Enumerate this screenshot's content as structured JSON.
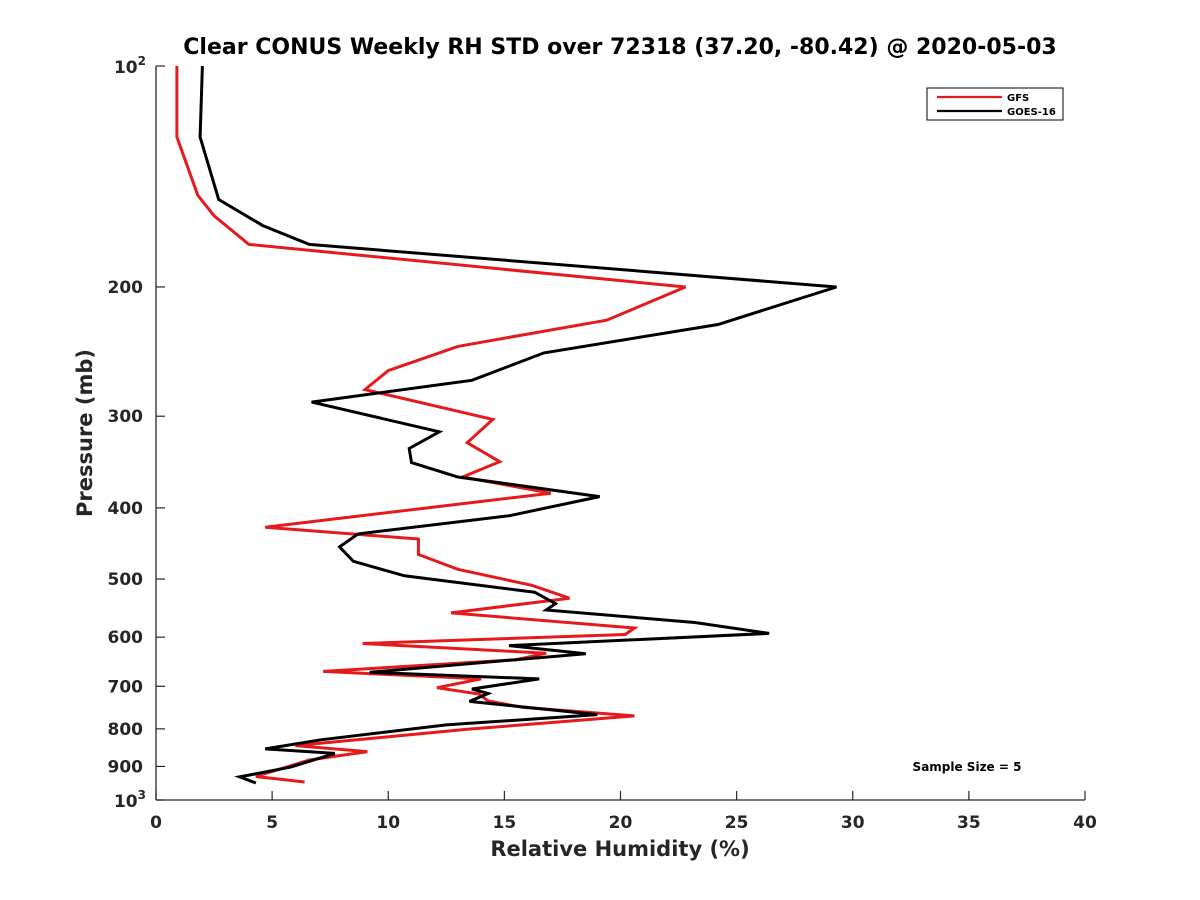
{
  "chart_data": {
    "type": "line",
    "title": "Clear CONUS Weekly RH STD over 72318 (37.20, -80.42) @ 2020-05-03",
    "xlabel": "Relative Humidity (%)",
    "ylabel": "Pressure (mb)",
    "xlim": [
      0,
      40
    ],
    "ylim": [
      100,
      1000
    ],
    "yscale": "log",
    "y_reversed": true,
    "grid": false,
    "legend_position": "top-right",
    "x_ticks": [
      "0",
      "5",
      "10",
      "15",
      "20",
      "25",
      "30",
      "35",
      "40"
    ],
    "y_ticks": [
      {
        "value": 100,
        "base": "10",
        "exp": "2"
      },
      {
        "value": 200,
        "label": "200"
      },
      {
        "value": 300,
        "label": "300"
      },
      {
        "value": 400,
        "label": "400"
      },
      {
        "value": 500,
        "label": "500"
      },
      {
        "value": 600,
        "label": "600"
      },
      {
        "value": 700,
        "label": "700"
      },
      {
        "value": 800,
        "label": "800"
      },
      {
        "value": 900,
        "label": "900"
      },
      {
        "value": 1000,
        "base": "10",
        "exp": "3"
      }
    ],
    "annotation": "Sample Size = 5",
    "series": [
      {
        "name": "GFS",
        "color": "#e41a1c",
        "points": [
          [
            0.9,
            100
          ],
          [
            0.9,
            125
          ],
          [
            1.8,
            150
          ],
          [
            2.5,
            160
          ],
          [
            4.0,
            175
          ],
          [
            22.8,
            200
          ],
          [
            19.4,
            222
          ],
          [
            13.0,
            241
          ],
          [
            10.0,
            260
          ],
          [
            9.0,
            276
          ],
          [
            14.5,
            303
          ],
          [
            13.4,
            326
          ],
          [
            14.8,
            346
          ],
          [
            13.2,
            363
          ],
          [
            17.0,
            382
          ],
          [
            4.7,
            425
          ],
          [
            11.3,
            441
          ],
          [
            11.3,
            463
          ],
          [
            13.0,
            485
          ],
          [
            16.2,
            510
          ],
          [
            17.8,
            531
          ],
          [
            12.7,
            556
          ],
          [
            20.6,
            583
          ],
          [
            20.2,
            595
          ],
          [
            8.9,
            612
          ],
          [
            16.8,
            631
          ],
          [
            15.5,
            644
          ],
          [
            7.2,
            668
          ],
          [
            14.0,
            684
          ],
          [
            12.1,
            703
          ],
          [
            13.9,
            717
          ],
          [
            14.3,
            733
          ],
          [
            15.8,
            748
          ],
          [
            20.6,
            768
          ],
          [
            13.4,
            801
          ],
          [
            6.0,
            843
          ],
          [
            9.1,
            859
          ],
          [
            6.6,
            882
          ],
          [
            4.3,
            929
          ],
          [
            6.4,
            945
          ]
        ]
      },
      {
        "name": "GOES-16",
        "color": "#000000",
        "points": [
          [
            2.0,
            100
          ],
          [
            1.9,
            125
          ],
          [
            2.7,
            152
          ],
          [
            4.6,
            165
          ],
          [
            6.6,
            175
          ],
          [
            29.3,
            200
          ],
          [
            24.2,
            225
          ],
          [
            16.7,
            246
          ],
          [
            13.6,
            268
          ],
          [
            6.7,
            287
          ],
          [
            12.2,
            315
          ],
          [
            10.9,
            332
          ],
          [
            11.0,
            347
          ],
          [
            13.0,
            363
          ],
          [
            19.1,
            386
          ],
          [
            15.2,
            410
          ],
          [
            8.7,
            434
          ],
          [
            7.9,
            452
          ],
          [
            8.5,
            473
          ],
          [
            10.7,
            495
          ],
          [
            16.3,
            521
          ],
          [
            17.2,
            540
          ],
          [
            16.8,
            551
          ],
          [
            23.2,
            573
          ],
          [
            26.4,
            593
          ],
          [
            15.2,
            616
          ],
          [
            18.5,
            632
          ],
          [
            9.2,
            670
          ],
          [
            16.5,
            684
          ],
          [
            13.6,
            706
          ],
          [
            14.3,
            716
          ],
          [
            13.5,
            734
          ],
          [
            19.0,
            765
          ],
          [
            12.5,
            790
          ],
          [
            7.1,
            828
          ],
          [
            4.7,
            852
          ],
          [
            7.7,
            864
          ],
          [
            5.8,
            902
          ],
          [
            3.6,
            930
          ],
          [
            4.3,
            948
          ]
        ]
      }
    ]
  }
}
